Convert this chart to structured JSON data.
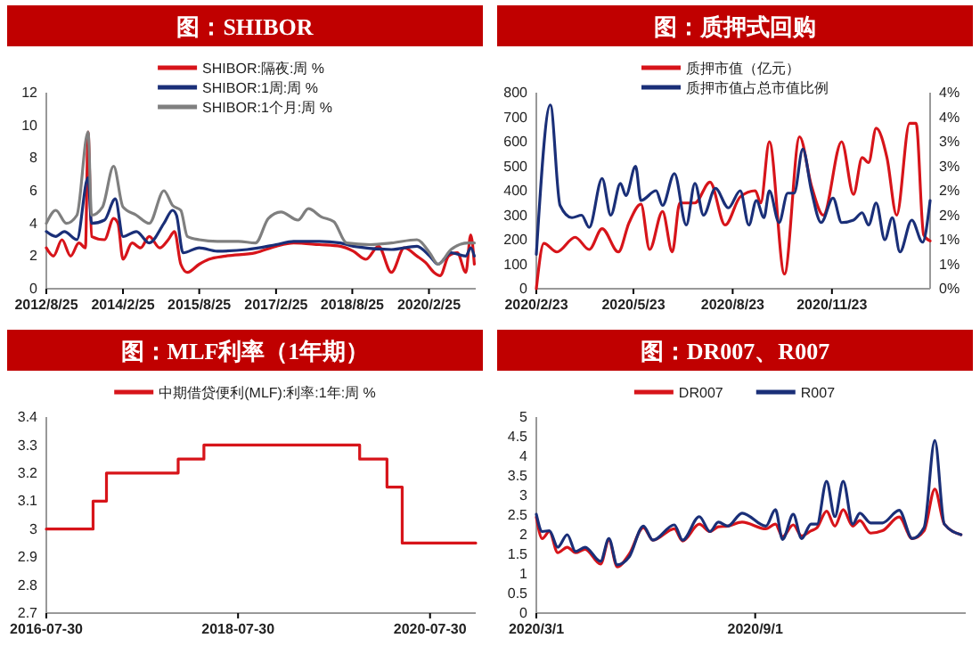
{
  "chart_data": [
    {
      "type": "line",
      "title": "图：SHIBOR",
      "ylim": [
        0,
        12
      ],
      "yticks": [
        0,
        2,
        4,
        6,
        8,
        10,
        12
      ],
      "xlim": [
        "2012-08-25",
        "2021-01-25"
      ],
      "xticks": [
        {
          "value": "2012-08-25",
          "label": "2012/8/25"
        },
        {
          "value": "2014-02-25",
          "label": "2014/2/25"
        },
        {
          "value": "2015-08-25",
          "label": "2015/8/25"
        },
        {
          "value": "2017-02-25",
          "label": "2017/2/25"
        },
        {
          "value": "2018-08-25",
          "label": "2018/8/25"
        },
        {
          "value": "2020-02-25",
          "label": "2020/2/25"
        }
      ],
      "legend": "top",
      "series": [
        {
          "name": "SHIBOR:隔夜:周 %",
          "color": "#d7141a",
          "x": [
            "2012-08-25",
            "2012-10-15",
            "2012-12-15",
            "2013-02-15",
            "2013-04-15",
            "2013-06-01",
            "2013-06-20",
            "2013-07-15",
            "2013-10-15",
            "2013-12-20",
            "2014-01-20",
            "2014-02-25",
            "2014-05-01",
            "2014-07-01",
            "2014-09-01",
            "2014-11-15",
            "2015-01-15",
            "2015-03-01",
            "2015-04-15",
            "2015-06-01",
            "2015-08-25",
            "2015-11-01",
            "2016-03-01",
            "2016-10-01",
            "2017-02-25",
            "2017-07-01",
            "2018-01-01",
            "2018-06-01",
            "2018-09-01",
            "2018-12-01",
            "2019-03-01",
            "2019-06-01",
            "2019-09-01",
            "2019-12-01",
            "2020-02-01",
            "2020-04-01",
            "2020-05-15",
            "2020-07-15",
            "2020-09-15",
            "2020-11-15",
            "2020-12-20",
            "2021-01-15"
          ],
          "values": [
            2.5,
            2.0,
            3.0,
            2.0,
            2.8,
            2.5,
            9.6,
            3.2,
            3.0,
            4.3,
            4.0,
            1.8,
            2.8,
            2.5,
            3.2,
            2.5,
            3.0,
            3.5,
            1.5,
            1.0,
            1.5,
            1.8,
            2.0,
            2.2,
            2.6,
            2.8,
            2.7,
            2.6,
            2.3,
            1.8,
            2.6,
            1.0,
            2.5,
            2.0,
            1.6,
            1.0,
            0.8,
            2.0,
            2.2,
            1.0,
            3.3,
            1.5
          ]
        },
        {
          "name": "SHIBOR:1周:周 %",
          "color": "#1a2f78",
          "x": [
            "2012-08-25",
            "2012-11-01",
            "2013-01-01",
            "2013-04-01",
            "2013-06-20",
            "2013-07-15",
            "2013-10-15",
            "2014-01-01",
            "2014-02-25",
            "2014-06-01",
            "2014-09-01",
            "2014-12-15",
            "2015-02-15",
            "2015-03-15",
            "2015-05-01",
            "2015-08-25",
            "2016-01-01",
            "2016-08-01",
            "2017-02-25",
            "2017-07-01",
            "2018-01-01",
            "2018-06-01",
            "2018-09-01",
            "2019-06-01",
            "2019-12-01",
            "2020-03-01",
            "2020-05-01",
            "2020-08-01",
            "2020-11-15",
            "2020-12-20",
            "2021-01-15"
          ],
          "values": [
            3.5,
            3.2,
            3.5,
            3.0,
            6.8,
            4.0,
            4.2,
            5.5,
            3.2,
            3.5,
            2.8,
            4.0,
            4.8,
            4.5,
            2.2,
            2.5,
            2.3,
            2.4,
            2.7,
            2.9,
            2.9,
            2.8,
            2.6,
            2.4,
            2.6,
            2.0,
            1.5,
            2.2,
            2.0,
            2.5,
            2.0
          ]
        },
        {
          "name": "SHIBOR:1个月:周 %",
          "color": "#7f7f7f",
          "x": [
            "2012-08-25",
            "2012-11-01",
            "2013-01-15",
            "2013-04-01",
            "2013-06-20",
            "2013-07-15",
            "2013-10-01",
            "2013-12-20",
            "2014-02-25",
            "2014-06-01",
            "2014-09-01",
            "2014-12-15",
            "2015-02-15",
            "2015-04-15",
            "2015-06-01",
            "2015-08-25",
            "2016-01-01",
            "2016-06-01",
            "2016-10-01",
            "2017-01-01",
            "2017-04-01",
            "2017-08-01",
            "2017-10-15",
            "2018-01-15",
            "2018-04-15",
            "2018-07-15",
            "2019-01-01",
            "2019-06-01",
            "2019-12-01",
            "2020-03-01",
            "2020-05-01",
            "2020-08-01",
            "2020-12-01",
            "2021-01-15"
          ],
          "values": [
            4.0,
            4.8,
            4.0,
            4.5,
            9.6,
            4.5,
            5.0,
            7.5,
            5.0,
            4.5,
            4.0,
            6.0,
            5.1,
            4.8,
            3.2,
            3.0,
            2.9,
            2.9,
            2.8,
            4.3,
            4.7,
            4.2,
            4.9,
            4.4,
            4.1,
            2.8,
            2.7,
            2.8,
            3.0,
            2.2,
            1.5,
            2.4,
            2.8,
            2.8
          ]
        }
      ]
    },
    {
      "type": "line",
      "title": "图：质押式回购",
      "ylim": [
        0,
        800
      ],
      "yticks": [
        0,
        100,
        200,
        300,
        400,
        500,
        600,
        700,
        800
      ],
      "y2lim": [
        0,
        4
      ],
      "y2ticks": [
        {
          "value": 0,
          "label": "0%"
        },
        {
          "value": 0.5,
          "label": "1%"
        },
        {
          "value": 1,
          "label": "1%"
        },
        {
          "value": 1.5,
          "label": "2%"
        },
        {
          "value": 2,
          "label": "2%"
        },
        {
          "value": 2.5,
          "label": "3%"
        },
        {
          "value": 3,
          "label": "3%"
        },
        {
          "value": 3.5,
          "label": "4%"
        },
        {
          "value": 4,
          "label": "4%"
        }
      ],
      "xlim": [
        "2020-02-23",
        "2021-02-22"
      ],
      "xticks": [
        {
          "value": "2020-02-23",
          "label": "2020/2/23"
        },
        {
          "value": "2020-05-23",
          "label": "2020/5/23"
        },
        {
          "value": "2020-08-23",
          "label": "2020/8/23"
        },
        {
          "value": "2020-11-23",
          "label": "2020/11/23"
        }
      ],
      "legend": "top",
      "series": [
        {
          "name": "质押市值（亿元）",
          "color": "#d7141a",
          "x": [
            "2020-02-23",
            "2020-03-01",
            "2020-03-13",
            "2020-03-30",
            "2020-04-12",
            "2020-04-24",
            "2020-05-09",
            "2020-05-19",
            "2020-05-30",
            "2020-06-07",
            "2020-06-19",
            "2020-06-28",
            "2020-07-05",
            "2020-07-19",
            "2020-08-02",
            "2020-08-16",
            "2020-08-30",
            "2020-09-13",
            "2020-09-18",
            "2020-09-26",
            "2020-10-10",
            "2020-10-24",
            "2020-11-04",
            "2020-11-15",
            "2020-12-02",
            "2020-12-13",
            "2020-12-21",
            "2020-12-27",
            "2021-01-03",
            "2021-01-13",
            "2021-01-22",
            "2021-02-03",
            "2021-02-09",
            "2021-02-16",
            "2021-02-22"
          ],
          "values": [
            0,
            185,
            150,
            210,
            160,
            245,
            150,
            270,
            345,
            160,
            315,
            150,
            350,
            350,
            435,
            260,
            375,
            400,
            350,
            600,
            60,
            620,
            420,
            300,
            600,
            385,
            535,
            515,
            655,
            535,
            300,
            675,
            675,
            220,
            195
          ]
        },
        {
          "name": "质押市值占总市值比例",
          "color": "#1a2f78",
          "axis": "y2",
          "x": [
            "2020-02-23",
            "2020-03-07",
            "2020-03-16",
            "2020-03-27",
            "2020-04-05",
            "2020-04-12",
            "2020-04-24",
            "2020-05-02",
            "2020-05-11",
            "2020-05-16",
            "2020-05-25",
            "2020-05-30",
            "2020-06-13",
            "2020-06-19",
            "2020-06-30",
            "2020-07-11",
            "2020-07-19",
            "2020-07-27",
            "2020-08-07",
            "2020-08-19",
            "2020-08-30",
            "2020-09-07",
            "2020-09-14",
            "2020-09-21",
            "2020-09-26",
            "2020-10-05",
            "2020-10-13",
            "2020-10-19",
            "2020-10-27",
            "2020-11-04",
            "2020-11-13",
            "2020-11-24",
            "2020-12-02",
            "2020-12-13",
            "2020-12-21",
            "2020-12-27",
            "2021-01-03",
            "2021-01-11",
            "2021-01-18",
            "2021-01-25",
            "2021-02-05",
            "2021-02-15",
            "2021-02-22"
          ],
          "values": [
            0.7,
            3.75,
            1.7,
            1.45,
            1.5,
            1.25,
            2.25,
            1.5,
            2.15,
            1.9,
            2.5,
            1.8,
            2.0,
            1.7,
            2.35,
            1.3,
            2.15,
            1.5,
            2.05,
            1.65,
            2.0,
            1.3,
            1.8,
            1.45,
            2.0,
            1.35,
            1.95,
            1.95,
            2.85,
            2.0,
            1.35,
            1.85,
            1.35,
            1.4,
            1.55,
            1.3,
            1.75,
            1.0,
            1.45,
            0.75,
            1.4,
            0.95,
            1.8
          ]
        }
      ]
    },
    {
      "type": "step",
      "title": "图：MLF利率（1年期）",
      "ylim": [
        2.7,
        3.4
      ],
      "yticks": [
        2.7,
        2.8,
        2.9,
        3,
        3.1,
        3.2,
        3.3,
        3.4
      ],
      "xlim": [
        "2016-07-30",
        "2021-01-20"
      ],
      "xticks": [
        {
          "value": "2016-07-30",
          "label": "2016-07-30"
        },
        {
          "value": "2018-07-30",
          "label": "2018-07-30"
        },
        {
          "value": "2020-07-30",
          "label": "2020-07-30"
        }
      ],
      "legend": "top",
      "series": [
        {
          "name": "中期借贷便利(MLF):利率:1年:周 %",
          "color": "#d7141a",
          "x": [
            "2016-07-30",
            "2017-01-24",
            "2017-03-16",
            "2017-12-14",
            "2018-03-22",
            "2019-11-05",
            "2020-02-17",
            "2020-04-15",
            "2021-01-20"
          ],
          "values": [
            3.0,
            3.1,
            3.2,
            3.25,
            3.3,
            3.25,
            3.15,
            2.95,
            2.95
          ]
        }
      ]
    },
    {
      "type": "line",
      "title": "图：DR007、R007",
      "ylim": [
        0,
        5
      ],
      "yticks": [
        0,
        0.5,
        1,
        1.5,
        2,
        2.5,
        3,
        3.5,
        4,
        4.5,
        5
      ],
      "xlim": [
        "2020-03-01",
        "2021-02-25"
      ],
      "xticks": [
        {
          "value": "2020-03-01",
          "label": "2020/3/1"
        },
        {
          "value": "2020-09-01",
          "label": "2020/9/1"
        }
      ],
      "legend": "top",
      "x": [
        "2020-03-01",
        "2020-03-06",
        "2020-03-12",
        "2020-03-19",
        "2020-03-27",
        "2020-04-03",
        "2020-04-11",
        "2020-04-24",
        "2020-05-01",
        "2020-05-08",
        "2020-05-18",
        "2020-05-30",
        "2020-06-07",
        "2020-06-25",
        "2020-07-02",
        "2020-07-16",
        "2020-07-25",
        "2020-08-01",
        "2020-08-09",
        "2020-08-21",
        "2020-09-10",
        "2020-09-18",
        "2020-09-24",
        "2020-10-03",
        "2020-10-10",
        "2020-10-18",
        "2020-10-23",
        "2020-10-31",
        "2020-11-07",
        "2020-11-14",
        "2020-11-22",
        "2020-11-28",
        "2020-12-07",
        "2020-12-17",
        "2020-12-31",
        "2021-01-11",
        "2021-01-21",
        "2021-01-30",
        "2021-02-07",
        "2021-02-21"
      ],
      "series": [
        {
          "name": "DR007",
          "color": "#d7141a",
          "values": [
            2.45,
            1.9,
            2.08,
            1.54,
            1.68,
            1.54,
            1.63,
            1.25,
            1.86,
            1.18,
            1.5,
            2.18,
            1.86,
            2.15,
            1.84,
            2.27,
            2.08,
            2.2,
            2.22,
            2.32,
            2.15,
            2.27,
            1.95,
            2.25,
            1.97,
            2.1,
            2.18,
            2.6,
            2.22,
            2.64,
            2.22,
            2.36,
            2.04,
            2.1,
            2.45,
            1.9,
            2.1,
            3.16,
            2.27,
            2.0
          ]
        },
        {
          "name": "R007",
          "color": "#1a2f78",
          "values": [
            2.52,
            2.08,
            2.1,
            1.68,
            2.0,
            1.57,
            1.68,
            1.32,
            1.9,
            1.23,
            1.43,
            2.22,
            1.86,
            2.25,
            1.86,
            2.46,
            2.08,
            2.32,
            2.22,
            2.55,
            2.22,
            2.64,
            1.88,
            2.52,
            1.9,
            2.27,
            2.27,
            3.36,
            2.46,
            3.36,
            2.27,
            2.55,
            2.3,
            2.3,
            2.62,
            1.9,
            2.18,
            4.4,
            2.27,
            2.0
          ]
        }
      ]
    }
  ]
}
